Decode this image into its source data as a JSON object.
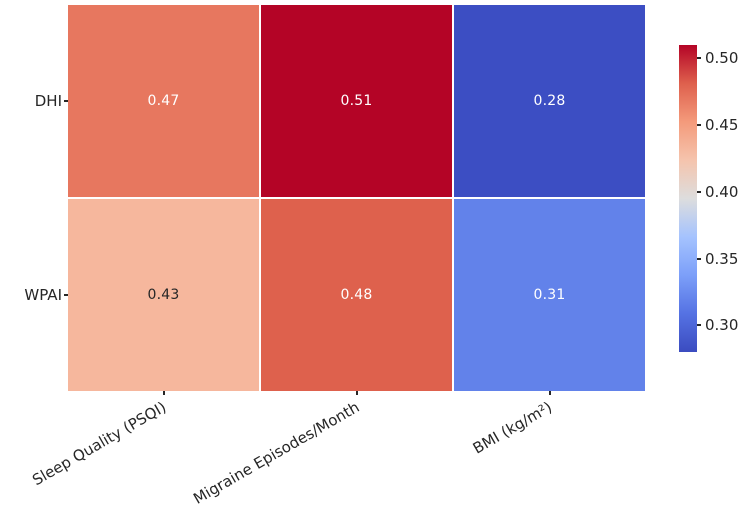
{
  "figure": {
    "background_color": "#ffffff",
    "axis_text_color": "#262626",
    "grid_gap_color": "#ffffff"
  },
  "chart_data": {
    "type": "heatmap",
    "title": "",
    "rows": [
      "DHI",
      "WPAI"
    ],
    "columns": [
      "Sleep Quality (PSQI)",
      "Migraine Episodes/Month",
      "BMI (kg/m²)"
    ],
    "values": [
      [
        0.47,
        0.51,
        0.28
      ],
      [
        0.43,
        0.48,
        0.31
      ]
    ],
    "value_labels": [
      [
        "0.47",
        "0.51",
        "0.28"
      ],
      [
        "0.43",
        "0.48",
        "0.31"
      ]
    ],
    "cell_colors": [
      [
        "#e7775f",
        "#b40426",
        "#3c4ec3"
      ],
      [
        "#f6b79d",
        "#de614d",
        "#6282ea"
      ]
    ],
    "cell_text_colors": [
      [
        "#ffffff",
        "#ffffff",
        "#ffffff"
      ],
      [
        "#262626",
        "#ffffff",
        "#ffffff"
      ]
    ],
    "x_tick_rotation_deg": 30,
    "colorbar": {
      "colormap_name": "coolwarm",
      "vmin": 0.28,
      "vmax": 0.51,
      "tick_values": [
        0.5,
        0.45,
        0.4,
        0.35,
        0.3
      ],
      "tick_labels": [
        "0.50",
        "0.45",
        "0.40",
        "0.35",
        "0.30"
      ],
      "gradient_stops_top_to_bottom": [
        {
          "pos": 0,
          "color": "#b40426"
        },
        {
          "pos": 12.5,
          "color": "#de604d"
        },
        {
          "pos": 25,
          "color": "#f49a7b"
        },
        {
          "pos": 37.5,
          "color": "#f5c4ad"
        },
        {
          "pos": 50,
          "color": "#dddddd"
        },
        {
          "pos": 62.5,
          "color": "#a5c3fe"
        },
        {
          "pos": 75,
          "color": "#7c9ff9"
        },
        {
          "pos": 87.5,
          "color": "#5572e3"
        },
        {
          "pos": 100,
          "color": "#3b4cc0"
        }
      ]
    }
  }
}
